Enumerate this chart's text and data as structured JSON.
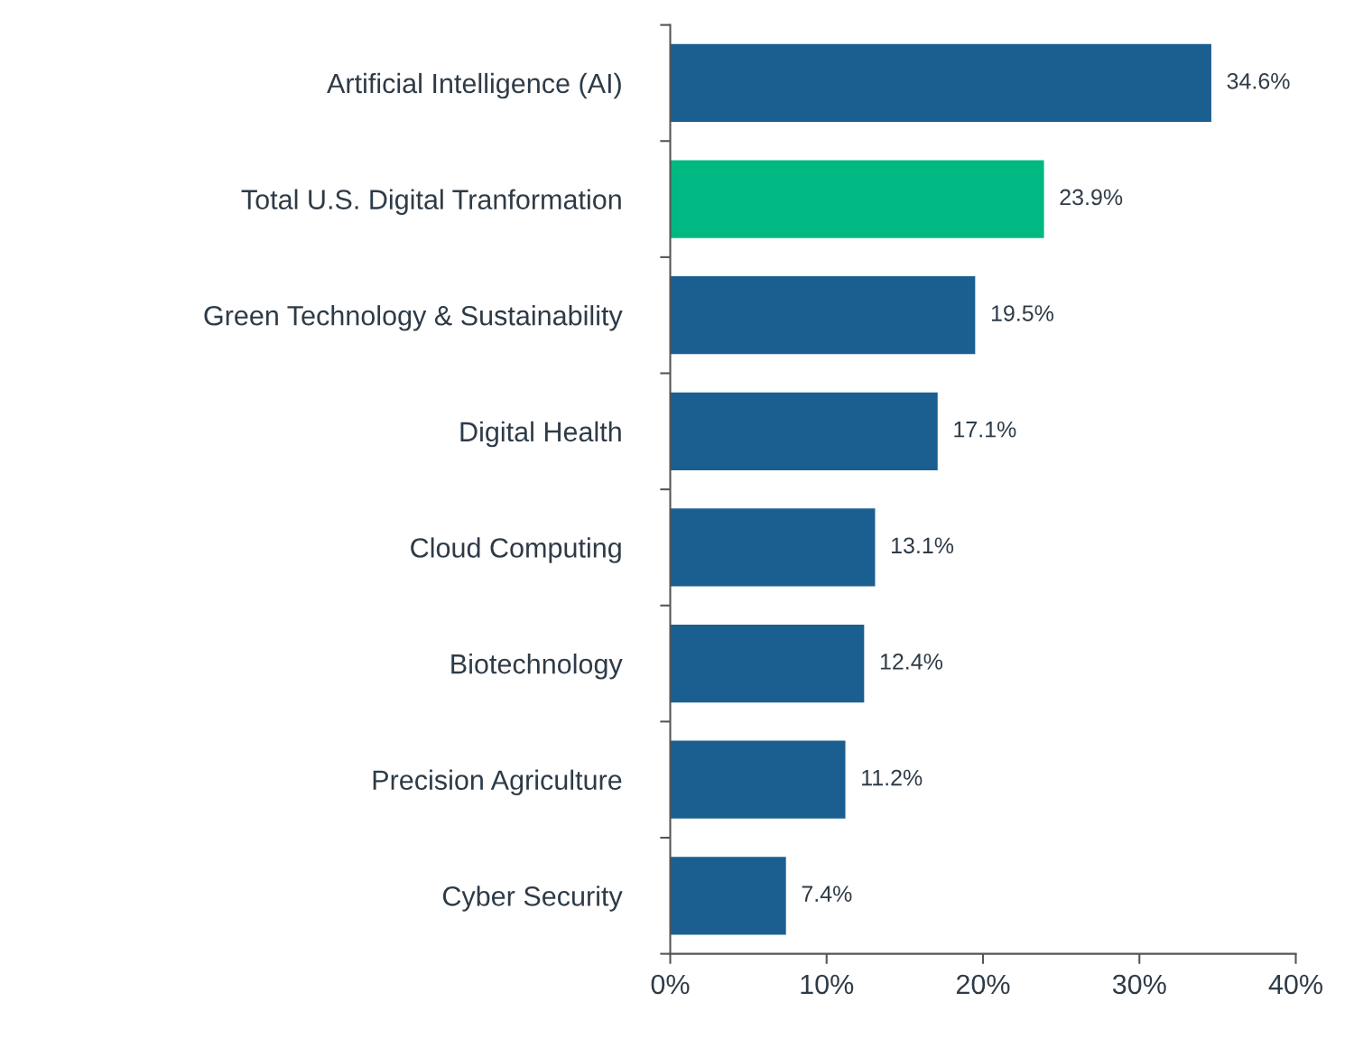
{
  "chart_data": {
    "type": "bar",
    "orientation": "horizontal",
    "categories": [
      "Artificial Intelligence (AI)",
      "Total U.S. Digital Tranformation",
      "Green Technology & Sustainability",
      "Digital Health",
      "Cloud Computing",
      "Biotechnology",
      "Precision Agriculture",
      "Cyber Security"
    ],
    "values": [
      34.6,
      23.9,
      19.5,
      17.1,
      13.1,
      12.4,
      11.2,
      7.4
    ],
    "value_labels": [
      "34.6%",
      "23.9%",
      "19.5%",
      "17.1%",
      "13.1%",
      "12.4%",
      "11.2%",
      "7.4%"
    ],
    "colors": [
      "#1b5f91",
      "#00b982",
      "#1b5f91",
      "#1b5f91",
      "#1b5f91",
      "#1b5f91",
      "#1b5f91",
      "#1b5f91"
    ],
    "xlim": [
      0,
      40
    ],
    "xticks": [
      {
        "value": 0,
        "label": "0%"
      },
      {
        "value": 10,
        "label": "10%"
      },
      {
        "value": 20,
        "label": "20%"
      },
      {
        "value": 30,
        "label": "30%"
      },
      {
        "value": 40,
        "label": "40%"
      }
    ],
    "grid": false,
    "legend": false
  }
}
